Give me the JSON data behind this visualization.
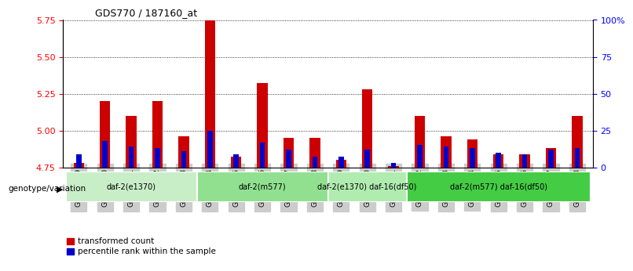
{
  "title": "GDS770 / 187160_at",
  "samples": [
    "GSM28389",
    "GSM28390",
    "GSM28391",
    "GSM28392",
    "GSM28393",
    "GSM28394",
    "GSM28395",
    "GSM28396",
    "GSM28397",
    "GSM28398",
    "GSM28399",
    "GSM28400",
    "GSM28401",
    "GSM28402",
    "GSM28403",
    "GSM28404",
    "GSM28405",
    "GSM28406",
    "GSM28407",
    "GSM28408"
  ],
  "red_values": [
    4.78,
    5.2,
    5.1,
    5.2,
    4.96,
    5.75,
    4.82,
    5.32,
    4.95,
    4.95,
    4.8,
    5.28,
    4.76,
    5.1,
    4.96,
    4.94,
    4.84,
    4.84,
    4.88,
    5.1
  ],
  "blue_values": [
    4.84,
    4.93,
    4.89,
    4.88,
    4.86,
    5.0,
    4.84,
    4.92,
    4.87,
    4.82,
    4.82,
    4.87,
    4.78,
    4.9,
    4.89,
    4.88,
    4.85,
    4.84,
    4.87,
    4.88
  ],
  "ylim_left": [
    4.75,
    5.75
  ],
  "ylim_right": [
    0,
    100
  ],
  "yticks_left": [
    4.75,
    5.0,
    5.25,
    5.5,
    5.75
  ],
  "yticks_right": [
    0,
    25,
    50,
    75,
    100
  ],
  "ytick_right_labels": [
    "0",
    "25",
    "50",
    "75",
    "100%"
  ],
  "groups": [
    {
      "label": "daf-2(e1370)",
      "start": 0,
      "end": 4,
      "color": "#c8eec8"
    },
    {
      "label": "daf-2(m577)",
      "start": 5,
      "end": 9,
      "color": "#90e090"
    },
    {
      "label": "daf-2(e1370) daf-16(df50)",
      "start": 10,
      "end": 12,
      "color": "#b0ecb0"
    },
    {
      "label": "daf-2(m577) daf-16(df50)",
      "start": 13,
      "end": 19,
      "color": "#44cc44"
    }
  ],
  "bar_width": 0.4,
  "base_value": 4.75,
  "red_color": "#cc0000",
  "blue_color": "#0000cc",
  "legend_red_label": "transformed count",
  "legend_blue_label": "percentile rank within the sample",
  "genotype_label": "genotype/variation",
  "arrow_char": "▶",
  "grid_color": "black",
  "grid_lw": 0.6,
  "grid_ls": ":"
}
